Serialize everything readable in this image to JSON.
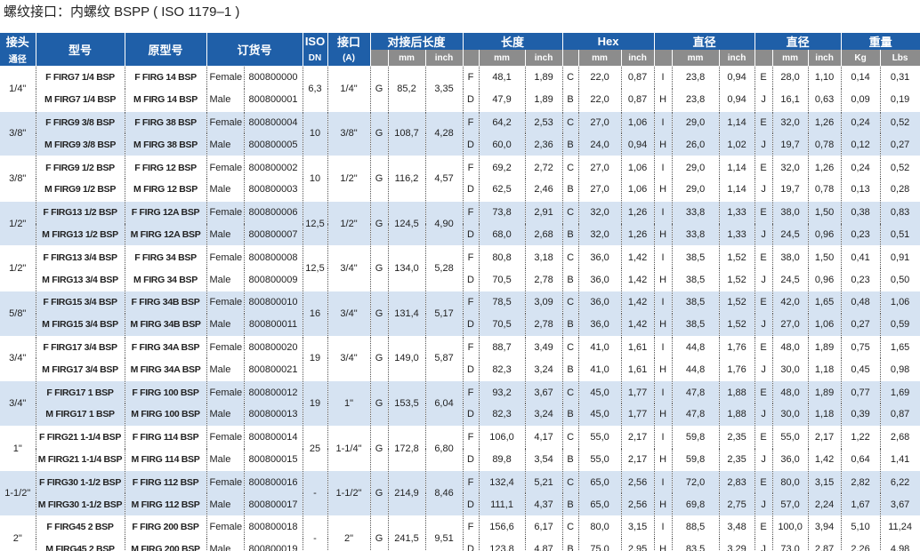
{
  "title": "螺纹接口：内螺纹 BSPP ( ISO 1179–1 )",
  "header": {
    "row1": [
      "接头",
      "型号",
      "原型号",
      "订货号",
      "ISO",
      "接口",
      "对接后长度",
      "长度",
      "Hex",
      "直径",
      "直径",
      "重量"
    ],
    "row2": [
      "通径",
      "DN",
      "(A)",
      "mm",
      "inch",
      "mm",
      "inch",
      "mm",
      "inch",
      "mm",
      "inch",
      "mm",
      "inch",
      "Kg",
      "Lbs"
    ]
  },
  "groups": [
    {
      "size": "1/4\"",
      "dn": "6,3",
      "thread": "1/4\"",
      "g": "G",
      "length_mm": "85,2",
      "length_inch": "3,35",
      "rows": [
        {
          "model": "F FIRG7 1/4 BSP",
          "original": "F FIRG 14 BSP",
          "gender": "Female",
          "order": "800800000",
          "length": [
            "F",
            "48,1",
            "1,89"
          ],
          "hex": [
            "C",
            "22,0",
            "0,87"
          ],
          "dia1": [
            "I",
            "23,8",
            "0,94"
          ],
          "dia2": [
            "E",
            "28,0",
            "1,10"
          ],
          "kg": "0,14",
          "lbs": "0,31"
        },
        {
          "model": "M FIRG7 1/4 BSP",
          "original": "M FIRG 14 BSP",
          "gender": "Male",
          "order": "800800001",
          "length": [
            "D",
            "47,9",
            "1,89"
          ],
          "hex": [
            "B",
            "22,0",
            "0,87"
          ],
          "dia1": [
            "H",
            "23,8",
            "0,94"
          ],
          "dia2": [
            "J",
            "16,1",
            "0,63"
          ],
          "kg": "0,09",
          "lbs": "0,19"
        }
      ]
    },
    {
      "size": "3/8\"",
      "dn": "10",
      "thread": "3/8\"",
      "g": "G",
      "length_mm": "108,7",
      "length_inch": "4,28",
      "rows": [
        {
          "model": "F FIRG9 3/8 BSP",
          "original": "F FIRG 38 BSP",
          "gender": "Female",
          "order": "800800004",
          "length": [
            "F",
            "64,2",
            "2,53"
          ],
          "hex": [
            "C",
            "27,0",
            "1,06"
          ],
          "dia1": [
            "I",
            "29,0",
            "1,14"
          ],
          "dia2": [
            "E",
            "32,0",
            "1,26"
          ],
          "kg": "0,24",
          "lbs": "0,52"
        },
        {
          "model": "M FIRG9 3/8 BSP",
          "original": "M FIRG 38 BSP",
          "gender": "Male",
          "order": "800800005",
          "length": [
            "D",
            "60,0",
            "2,36"
          ],
          "hex": [
            "B",
            "24,0",
            "0,94"
          ],
          "dia1": [
            "H",
            "26,0",
            "1,02"
          ],
          "dia2": [
            "J",
            "19,7",
            "0,78"
          ],
          "kg": "0,12",
          "lbs": "0,27"
        }
      ]
    },
    {
      "size": "3/8\"",
      "dn": "10",
      "thread": "1/2\"",
      "g": "G",
      "length_mm": "116,2",
      "length_inch": "4,57",
      "rows": [
        {
          "model": "F FIRG9 1/2 BSP",
          "original": "F FIRG 12 BSP",
          "gender": "Female",
          "order": "800800002",
          "length": [
            "F",
            "69,2",
            "2,72"
          ],
          "hex": [
            "C",
            "27,0",
            "1,06"
          ],
          "dia1": [
            "I",
            "29,0",
            "1,14"
          ],
          "dia2": [
            "E",
            "32,0",
            "1,26"
          ],
          "kg": "0,24",
          "lbs": "0,52"
        },
        {
          "model": "M FIRG9 1/2 BSP",
          "original": "M FIRG 12 BSP",
          "gender": "Male",
          "order": "800800003",
          "length": [
            "D",
            "62,5",
            "2,46"
          ],
          "hex": [
            "B",
            "27,0",
            "1,06"
          ],
          "dia1": [
            "H",
            "29,0",
            "1,14"
          ],
          "dia2": [
            "J",
            "19,7",
            "0,78"
          ],
          "kg": "0,13",
          "lbs": "0,28"
        }
      ]
    },
    {
      "size": "1/2\"",
      "dn": "12,5",
      "thread": "1/2\"",
      "g": "G",
      "length_mm": "124,5",
      "length_inch": "4,90",
      "rows": [
        {
          "model": "F FIRG13 1/2 BSP",
          "original": "F FIRG 12A BSP",
          "gender": "Female",
          "order": "800800006",
          "length": [
            "F",
            "73,8",
            "2,91"
          ],
          "hex": [
            "C",
            "32,0",
            "1,26"
          ],
          "dia1": [
            "I",
            "33,8",
            "1,33"
          ],
          "dia2": [
            "E",
            "38,0",
            "1,50"
          ],
          "kg": "0,38",
          "lbs": "0,83"
        },
        {
          "model": "M FIRG13 1/2 BSP",
          "original": "M FIRG 12A BSP",
          "gender": "Male",
          "order": "800800007",
          "length": [
            "D",
            "68,0",
            "2,68"
          ],
          "hex": [
            "B",
            "32,0",
            "1,26"
          ],
          "dia1": [
            "H",
            "33,8",
            "1,33"
          ],
          "dia2": [
            "J",
            "24,5",
            "0,96"
          ],
          "kg": "0,23",
          "lbs": "0,51"
        }
      ]
    },
    {
      "size": "1/2\"",
      "dn": "12,5",
      "thread": "3/4\"",
      "g": "G",
      "length_mm": "134,0",
      "length_inch": "5,28",
      "rows": [
        {
          "model": "F FIRG13 3/4 BSP",
          "original": "F FIRG 34 BSP",
          "gender": "Female",
          "order": "800800008",
          "length": [
            "F",
            "80,8",
            "3,18"
          ],
          "hex": [
            "C",
            "36,0",
            "1,42"
          ],
          "dia1": [
            "I",
            "38,5",
            "1,52"
          ],
          "dia2": [
            "E",
            "38,0",
            "1,50"
          ],
          "kg": "0,41",
          "lbs": "0,91"
        },
        {
          "model": "M FIRG13 3/4 BSP",
          "original": "M FIRG 34 BSP",
          "gender": "Male",
          "order": "800800009",
          "length": [
            "D",
            "70,5",
            "2,78"
          ],
          "hex": [
            "B",
            "36,0",
            "1,42"
          ],
          "dia1": [
            "H",
            "38,5",
            "1,52"
          ],
          "dia2": [
            "J",
            "24,5",
            "0,96"
          ],
          "kg": "0,23",
          "lbs": "0,50"
        }
      ]
    },
    {
      "size": "5/8\"",
      "dn": "16",
      "thread": "3/4\"",
      "g": "G",
      "length_mm": "131,4",
      "length_inch": "5,17",
      "rows": [
        {
          "model": "F FIRG15 3/4 BSP",
          "original": "F FIRG 34B BSP",
          "gender": "Female",
          "order": "800800010",
          "length": [
            "F",
            "78,5",
            "3,09"
          ],
          "hex": [
            "C",
            "36,0",
            "1,42"
          ],
          "dia1": [
            "I",
            "38,5",
            "1,52"
          ],
          "dia2": [
            "E",
            "42,0",
            "1,65"
          ],
          "kg": "0,48",
          "lbs": "1,06"
        },
        {
          "model": "M FIRG15 3/4 BSP",
          "original": "M FIRG 34B BSP",
          "gender": "Male",
          "order": "800800011",
          "length": [
            "D",
            "70,5",
            "2,78"
          ],
          "hex": [
            "B",
            "36,0",
            "1,42"
          ],
          "dia1": [
            "H",
            "38,5",
            "1,52"
          ],
          "dia2": [
            "J",
            "27,0",
            "1,06"
          ],
          "kg": "0,27",
          "lbs": "0,59"
        }
      ]
    },
    {
      "size": "3/4\"",
      "dn": "19",
      "thread": "3/4\"",
      "g": "G",
      "length_mm": "149,0",
      "length_inch": "5,87",
      "rows": [
        {
          "model": "F FIRG17 3/4 BSP",
          "original": "F FIRG 34A BSP",
          "gender": "Female",
          "order": "800800020",
          "length": [
            "F",
            "88,7",
            "3,49"
          ],
          "hex": [
            "C",
            "41,0",
            "1,61"
          ],
          "dia1": [
            "I",
            "44,8",
            "1,76"
          ],
          "dia2": [
            "E",
            "48,0",
            "1,89"
          ],
          "kg": "0,75",
          "lbs": "1,65"
        },
        {
          "model": "M FIRG17 3/4 BSP",
          "original": "M FIRG 34A BSP",
          "gender": "Male",
          "order": "800800021",
          "length": [
            "D",
            "82,3",
            "3,24"
          ],
          "hex": [
            "B",
            "41,0",
            "1,61"
          ],
          "dia1": [
            "H",
            "44,8",
            "1,76"
          ],
          "dia2": [
            "J",
            "30,0",
            "1,18"
          ],
          "kg": "0,45",
          "lbs": "0,98"
        }
      ]
    },
    {
      "size": "3/4\"",
      "dn": "19",
      "thread": "1\"",
      "g": "G",
      "length_mm": "153,5",
      "length_inch": "6,04",
      "rows": [
        {
          "model": "F FIRG17 1 BSP",
          "original": "F FIRG 100 BSP",
          "gender": "Female",
          "order": "800800012",
          "length": [
            "F",
            "93,2",
            "3,67"
          ],
          "hex": [
            "C",
            "45,0",
            "1,77"
          ],
          "dia1": [
            "I",
            "47,8",
            "1,88"
          ],
          "dia2": [
            "E",
            "48,0",
            "1,89"
          ],
          "kg": "0,77",
          "lbs": "1,69"
        },
        {
          "model": "M FIRG17 1 BSP",
          "original": "M FIRG 100 BSP",
          "gender": "Male",
          "order": "800800013",
          "length": [
            "D",
            "82,3",
            "3,24"
          ],
          "hex": [
            "B",
            "45,0",
            "1,77"
          ],
          "dia1": [
            "H",
            "47,8",
            "1,88"
          ],
          "dia2": [
            "J",
            "30,0",
            "1,18"
          ],
          "kg": "0,39",
          "lbs": "0,87"
        }
      ]
    },
    {
      "size": "1\"",
      "dn": "25",
      "thread": "1-1/4\"",
      "g": "G",
      "length_mm": "172,8",
      "length_inch": "6,80",
      "rows": [
        {
          "model": "F FIRG21 1-1/4 BSP",
          "original": "F FIRG 114 BSP",
          "gender": "Female",
          "order": "800800014",
          "length": [
            "F",
            "106,0",
            "4,17"
          ],
          "hex": [
            "C",
            "55,0",
            "2,17"
          ],
          "dia1": [
            "I",
            "59,8",
            "2,35"
          ],
          "dia2": [
            "E",
            "55,0",
            "2,17"
          ],
          "kg": "1,22",
          "lbs": "2,68"
        },
        {
          "model": "M FIRG21 1-1/4 BSP",
          "original": "M FIRG 114 BSP",
          "gender": "Male",
          "order": "800800015",
          "length": [
            "D",
            "89,8",
            "3,54"
          ],
          "hex": [
            "B",
            "55,0",
            "2,17"
          ],
          "dia1": [
            "H",
            "59,8",
            "2,35"
          ],
          "dia2": [
            "J",
            "36,0",
            "1,42"
          ],
          "kg": "0,64",
          "lbs": "1,41"
        }
      ]
    },
    {
      "size": "1-1/2\"",
      "dn": "-",
      "thread": "1-1/2\"",
      "g": "G",
      "length_mm": "214,9",
      "length_inch": "8,46",
      "rows": [
        {
          "model": "F FIRG30 1-1/2 BSP",
          "original": "F FIRG 112 BSP",
          "gender": "Female",
          "order": "800800016",
          "length": [
            "F",
            "132,4",
            "5,21"
          ],
          "hex": [
            "C",
            "65,0",
            "2,56"
          ],
          "dia1": [
            "I",
            "72,0",
            "2,83"
          ],
          "dia2": [
            "E",
            "80,0",
            "3,15"
          ],
          "kg": "2,82",
          "lbs": "6,22"
        },
        {
          "model": "M FIRG30 1-1/2 BSP",
          "original": "M FIRG 112 BSP",
          "gender": "Male",
          "order": "800800017",
          "length": [
            "D",
            "111,1",
            "4,37"
          ],
          "hex": [
            "B",
            "65,0",
            "2,56"
          ],
          "dia1": [
            "H",
            "69,8",
            "2,75"
          ],
          "dia2": [
            "J",
            "57,0",
            "2,24"
          ],
          "kg": "1,67",
          "lbs": "3,67"
        }
      ]
    },
    {
      "size": "2\"",
      "dn": "-",
      "thread": "2\"",
      "g": "G",
      "length_mm": "241,5",
      "length_inch": "9,51",
      "rows": [
        {
          "model": "F FIRG45 2 BSP",
          "original": "F FIRG 200 BSP",
          "gender": "Female",
          "order": "800800018",
          "length": [
            "F",
            "156,6",
            "6,17"
          ],
          "hex": [
            "C",
            "80,0",
            "3,15"
          ],
          "dia1": [
            "I",
            "88,5",
            "3,48"
          ],
          "dia2": [
            "E",
            "100,0",
            "3,94"
          ],
          "kg": "5,10",
          "lbs": "11,24"
        },
        {
          "model": "M FIRG45 2 BSP",
          "original": "M FIRG 200 BSP",
          "gender": "Male",
          "order": "800800019",
          "length": [
            "D",
            "123,8",
            "4,87"
          ],
          "hex": [
            "B",
            "75,0",
            "2,95"
          ],
          "dia1": [
            "H",
            "83,5",
            "3,29"
          ],
          "dia2": [
            "J",
            "73,0",
            "2,87"
          ],
          "kg": "2,26",
          "lbs": "4,98"
        }
      ]
    }
  ]
}
